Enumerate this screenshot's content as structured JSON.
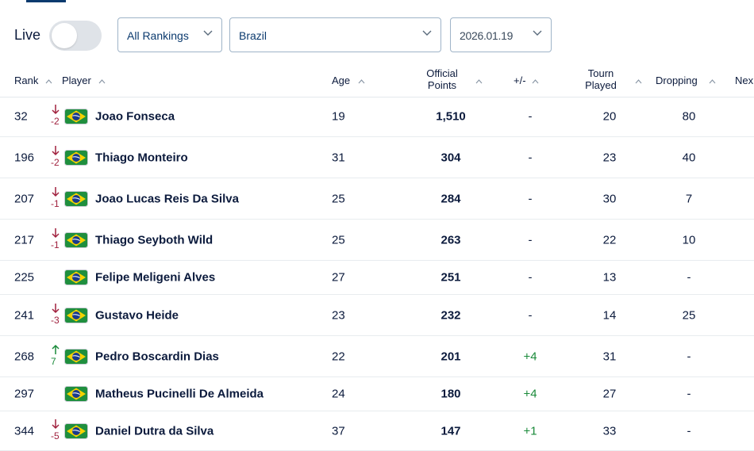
{
  "filters": {
    "live_label": "Live",
    "rankings_value": "All Rankings",
    "country_value": "Brazil",
    "date_value": "2026.01.19"
  },
  "columns": {
    "rank": "Rank",
    "player": "Player",
    "age": "Age",
    "points_line1": "Official",
    "points_line2": "Points",
    "change": "+/-",
    "tourn_line1": "Tourn",
    "tourn_line2": "Played",
    "dropping": "Dropping",
    "next": "Nex"
  },
  "rows": [
    {
      "rank": "32",
      "move_dir": "down",
      "move": "-2",
      "name": "Joao Fonseca",
      "age": "19",
      "points": "1,510",
      "change": "-",
      "tourn": "20",
      "dropping": "80"
    },
    {
      "rank": "196",
      "move_dir": "down",
      "move": "-2",
      "name": "Thiago Monteiro",
      "age": "31",
      "points": "304",
      "change": "-",
      "tourn": "23",
      "dropping": "40"
    },
    {
      "rank": "207",
      "move_dir": "down",
      "move": "-1",
      "name": "Joao Lucas Reis Da Silva",
      "age": "25",
      "points": "284",
      "change": "-",
      "tourn": "30",
      "dropping": "7"
    },
    {
      "rank": "217",
      "move_dir": "down",
      "move": "-1",
      "name": "Thiago Seyboth Wild",
      "age": "25",
      "points": "263",
      "change": "-",
      "tourn": "22",
      "dropping": "10"
    },
    {
      "rank": "225",
      "move_dir": "none",
      "move": "",
      "name": "Felipe Meligeni Alves",
      "age": "27",
      "points": "251",
      "change": "-",
      "tourn": "13",
      "dropping": "-"
    },
    {
      "rank": "241",
      "move_dir": "down",
      "move": "-3",
      "name": "Gustavo Heide",
      "age": "23",
      "points": "232",
      "change": "-",
      "tourn": "14",
      "dropping": "25"
    },
    {
      "rank": "268",
      "move_dir": "up",
      "move": "7",
      "name": "Pedro Boscardin Dias",
      "age": "22",
      "points": "201",
      "change": "+4",
      "tourn": "31",
      "dropping": "-"
    },
    {
      "rank": "297",
      "move_dir": "none",
      "move": "",
      "name": "Matheus Pucinelli De Almeida",
      "age": "24",
      "points": "180",
      "change": "+4",
      "tourn": "27",
      "dropping": "-"
    },
    {
      "rank": "344",
      "move_dir": "down",
      "move": "-5",
      "name": "Daniel Dutra da Silva",
      "age": "37",
      "points": "147",
      "change": "+1",
      "tourn": "33",
      "dropping": "-"
    }
  ],
  "colors": {
    "text": "#0b1a3c",
    "link": "#0b3a6e",
    "down": "#a0213e",
    "up": "#1a8a3a",
    "flag_green": "#1f8f3e",
    "flag_yellow": "#f5d200",
    "flag_blue": "#1a3a8c"
  },
  "icons": {
    "toggle": "toggle-switch",
    "dropdown": "chevron-down-icon",
    "sort": "sort-caret-up-icon",
    "move_down": "arrow-down-icon",
    "move_up": "arrow-up-icon",
    "flag": "brazil-flag-icon"
  }
}
